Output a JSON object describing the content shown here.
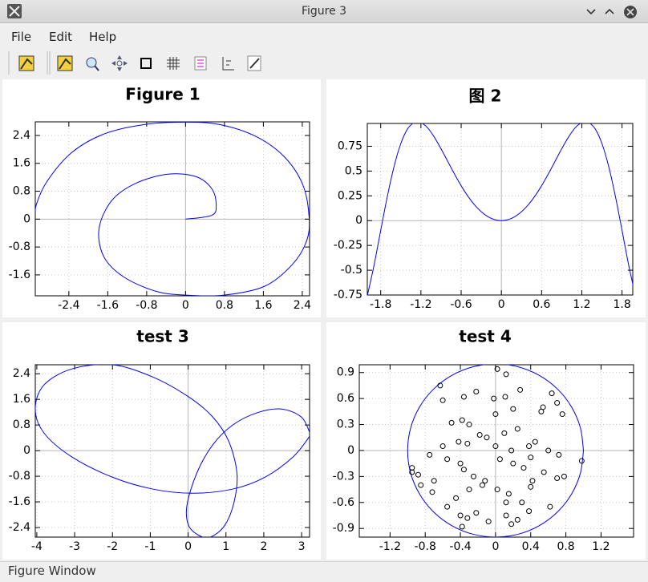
{
  "window": {
    "title": "Figure 3"
  },
  "menu": [
    "File",
    "Edit",
    "Help"
  ],
  "status": "Figure Window",
  "chart_data": [
    {
      "type": "line",
      "title": "Figure 1",
      "grid": true,
      "xlim": [
        -3.09,
        2.55
      ],
      "ylim": [
        -2.2,
        2.79
      ],
      "xticks": [
        -2.4,
        -1.6,
        -0.8,
        0,
        0.8,
        1.6,
        2.4
      ],
      "yticks": [
        2.4,
        1.6,
        0.8,
        0,
        -0.8,
        -1.6
      ],
      "series": [
        {
          "color": "#0000ff",
          "x": [
            0,
            0.54,
            0.63,
            0.54,
            0.21,
            -0.36,
            -1.02,
            -1.52,
            -1.78,
            -1.68,
            -1.27,
            -0.61,
            0,
            0.79,
            1.62,
            2.19,
            2.49,
            2.54,
            2.41,
            2.03,
            1.45,
            0.71,
            0,
            -0.86,
            -1.68,
            -2.34,
            -2.84,
            -3.07,
            -3.1
          ],
          "values": [
            0,
            0.11,
            0.41,
            0.87,
            1.22,
            1.29,
            1.03,
            0.53,
            -0.28,
            -1.08,
            -1.66,
            -2.07,
            -2.18,
            -2.18,
            -1.93,
            -1.31,
            -0.62,
            0.07,
            0.99,
            1.79,
            2.37,
            2.71,
            2.78,
            2.71,
            2.44,
            1.91,
            1.1,
            0.41,
            -0.05
          ]
        }
      ]
    },
    {
      "type": "line",
      "title": "图 2",
      "grid": true,
      "xlim": [
        -2.0,
        1.96
      ],
      "ylim": [
        -0.75,
        0.98
      ],
      "xticks": [
        -1.8,
        -1.2,
        -0.6,
        0,
        0.6,
        1.2,
        1.8
      ],
      "yticks": [
        0.75,
        0.5,
        0.25,
        0,
        -0.25,
        -0.5,
        -0.75
      ],
      "series": [
        {
          "color": "#0000ff",
          "x": [
            -2.0,
            -1.9,
            -1.8,
            -1.7,
            -1.6,
            -1.5,
            -1.4,
            -1.3,
            -1.25,
            -1.2,
            -1.1,
            -1.0,
            -0.9,
            -0.8,
            -0.7,
            -0.6,
            -0.5,
            -0.4,
            -0.3,
            -0.2,
            -0.1,
            0,
            0.1,
            0.2,
            0.3,
            0.4,
            0.5,
            0.6,
            0.7,
            0.8,
            0.9,
            1.0,
            1.1,
            1.2,
            1.25,
            1.3,
            1.4,
            1.5,
            1.6,
            1.7,
            1.8,
            1.9,
            2.0
          ],
          "values": [
            -0.757,
            -0.452,
            -0.098,
            0.248,
            0.549,
            0.778,
            0.925,
            0.993,
            1.0,
            0.991,
            0.936,
            0.841,
            0.724,
            0.597,
            0.471,
            0.352,
            0.247,
            0.159,
            0.09,
            0.04,
            0.01,
            0,
            0.01,
            0.04,
            0.09,
            0.159,
            0.247,
            0.352,
            0.471,
            0.597,
            0.724,
            0.841,
            0.936,
            0.991,
            1.0,
            0.993,
            0.925,
            0.778,
            0.549,
            0.248,
            -0.098,
            -0.452,
            -0.757
          ]
        }
      ]
    },
    {
      "type": "line",
      "title": "test 3",
      "grid": true,
      "xlim": [
        -4.04,
        3.21
      ],
      "ylim": [
        -2.7,
        2.68
      ],
      "xticks": [
        -4,
        -3,
        -2,
        -1,
        0,
        1,
        2,
        3
      ],
      "yticks": [
        2.4,
        1.6,
        0.8,
        0,
        -0.8,
        -1.6,
        -2.4
      ],
      "series": [
        {
          "color": "#0000ff",
          "x": [
            3.22,
            2.99,
            2.45,
            1.82,
            1.18,
            0.65,
            0.23,
            -0.03,
            0.01,
            0.29,
            0.59,
            0.97,
            1.22,
            1.29,
            1.07,
            0.65,
            0.01,
            -0.94,
            -2.0,
            -3.07,
            -3.81,
            -4.04,
            -3.81,
            -3.07,
            -2.0,
            -0.94,
            0.12,
            1.18,
            2.03,
            2.77,
            3.2,
            3.22
          ],
          "values": [
            0.55,
            1.05,
            1.3,
            1.18,
            0.8,
            0.18,
            -0.7,
            -1.7,
            -2.33,
            -2.65,
            -2.7,
            -2.33,
            -1.58,
            -0.7,
            0.3,
            1.05,
            1.68,
            2.3,
            2.68,
            2.55,
            2.05,
            1.3,
            0.55,
            -0.2,
            -0.83,
            -1.2,
            -1.33,
            -1.2,
            -0.83,
            -0.2,
            0.43,
            0.55
          ]
        }
      ]
    },
    {
      "type": "scatter",
      "title": "test 4",
      "grid": true,
      "xlim": [
        -1.55,
        1.57
      ],
      "ylim": [
        -1.0,
        0.99
      ],
      "xticks": [
        -1.2,
        -0.8,
        -0.4,
        0,
        0.4,
        0.8,
        1.2
      ],
      "yticks": [
        0.9,
        0.6,
        0.3,
        0,
        -0.3,
        -0.6,
        -0.9
      ],
      "series": [
        {
          "style": "line",
          "color": "#0000ff",
          "x": [
            1,
            0.966,
            0.866,
            0.707,
            0.5,
            0.259,
            0,
            -0.259,
            -0.5,
            -0.707,
            -0.866,
            -0.966,
            -1,
            -0.966,
            -0.866,
            -0.707,
            -0.5,
            -0.259,
            0,
            0.259,
            0.5,
            0.707,
            0.866,
            0.966,
            1
          ],
          "values": [
            0,
            0.259,
            0.5,
            0.707,
            0.866,
            0.966,
            1,
            0.966,
            0.866,
            0.707,
            0.5,
            0.259,
            0,
            -0.259,
            -0.5,
            -0.707,
            -0.866,
            -0.966,
            -1,
            -0.966,
            -0.866,
            -0.707,
            -0.5,
            -0.259,
            0
          ]
        },
        {
          "style": "marker",
          "color": "#000000",
          "x": [
            -0.63,
            0.02,
            0.12,
            -0.6,
            -0.36,
            -0.22,
            -0.02,
            0.11,
            0.28,
            0.64,
            0.76,
            0.54,
            0.0,
            0.2,
            -0.38,
            -0.5,
            -0.3,
            -0.1,
            0.1,
            0.25,
            0.52,
            0.7,
            -0.95,
            -0.75,
            -0.6,
            -0.42,
            -0.32,
            -0.18,
            0.0,
            0.18,
            0.38,
            0.45,
            0.6,
            0.72,
            0.98,
            -0.95,
            -0.88,
            -0.7,
            -0.55,
            -0.4,
            -0.36,
            -0.25,
            -0.12,
            0.05,
            0.2,
            0.32,
            0.4,
            0.55,
            0.78,
            -0.85,
            -0.72,
            -0.45,
            -0.3,
            -0.15,
            0.02,
            0.15,
            0.3,
            0.42,
            0.62,
            -0.55,
            -0.4,
            -0.32,
            -0.08,
            0.12,
            0.25,
            0.38,
            0.7,
            -0.38,
            -0.22,
            0.12,
            0.18,
            0.4
          ],
          "values": [
            0.75,
            0.94,
            0.88,
            0.58,
            0.62,
            0.68,
            0.6,
            0.62,
            0.7,
            0.66,
            0.42,
            0.5,
            0.42,
            0.48,
            0.35,
            0.32,
            0.3,
            0.15,
            0.2,
            0.25,
            0.45,
            0.55,
            -0.2,
            -0.05,
            0.05,
            0.1,
            0.08,
            0.18,
            0.05,
            0.0,
            0.05,
            0.1,
            0.0,
            -0.05,
            -0.12,
            -0.25,
            -0.28,
            -0.35,
            -0.1,
            -0.15,
            -0.22,
            -0.3,
            -0.35,
            -0.1,
            -0.15,
            -0.2,
            -0.08,
            -0.25,
            -0.3,
            -0.4,
            -0.48,
            -0.55,
            -0.45,
            -0.4,
            -0.45,
            -0.5,
            -0.6,
            -0.35,
            -0.65,
            -0.65,
            -0.75,
            -0.78,
            -0.82,
            -0.75,
            -0.8,
            -0.7,
            -0.32,
            -0.88,
            -0.72,
            -0.6,
            -0.85,
            -0.42
          ]
        }
      ]
    }
  ]
}
